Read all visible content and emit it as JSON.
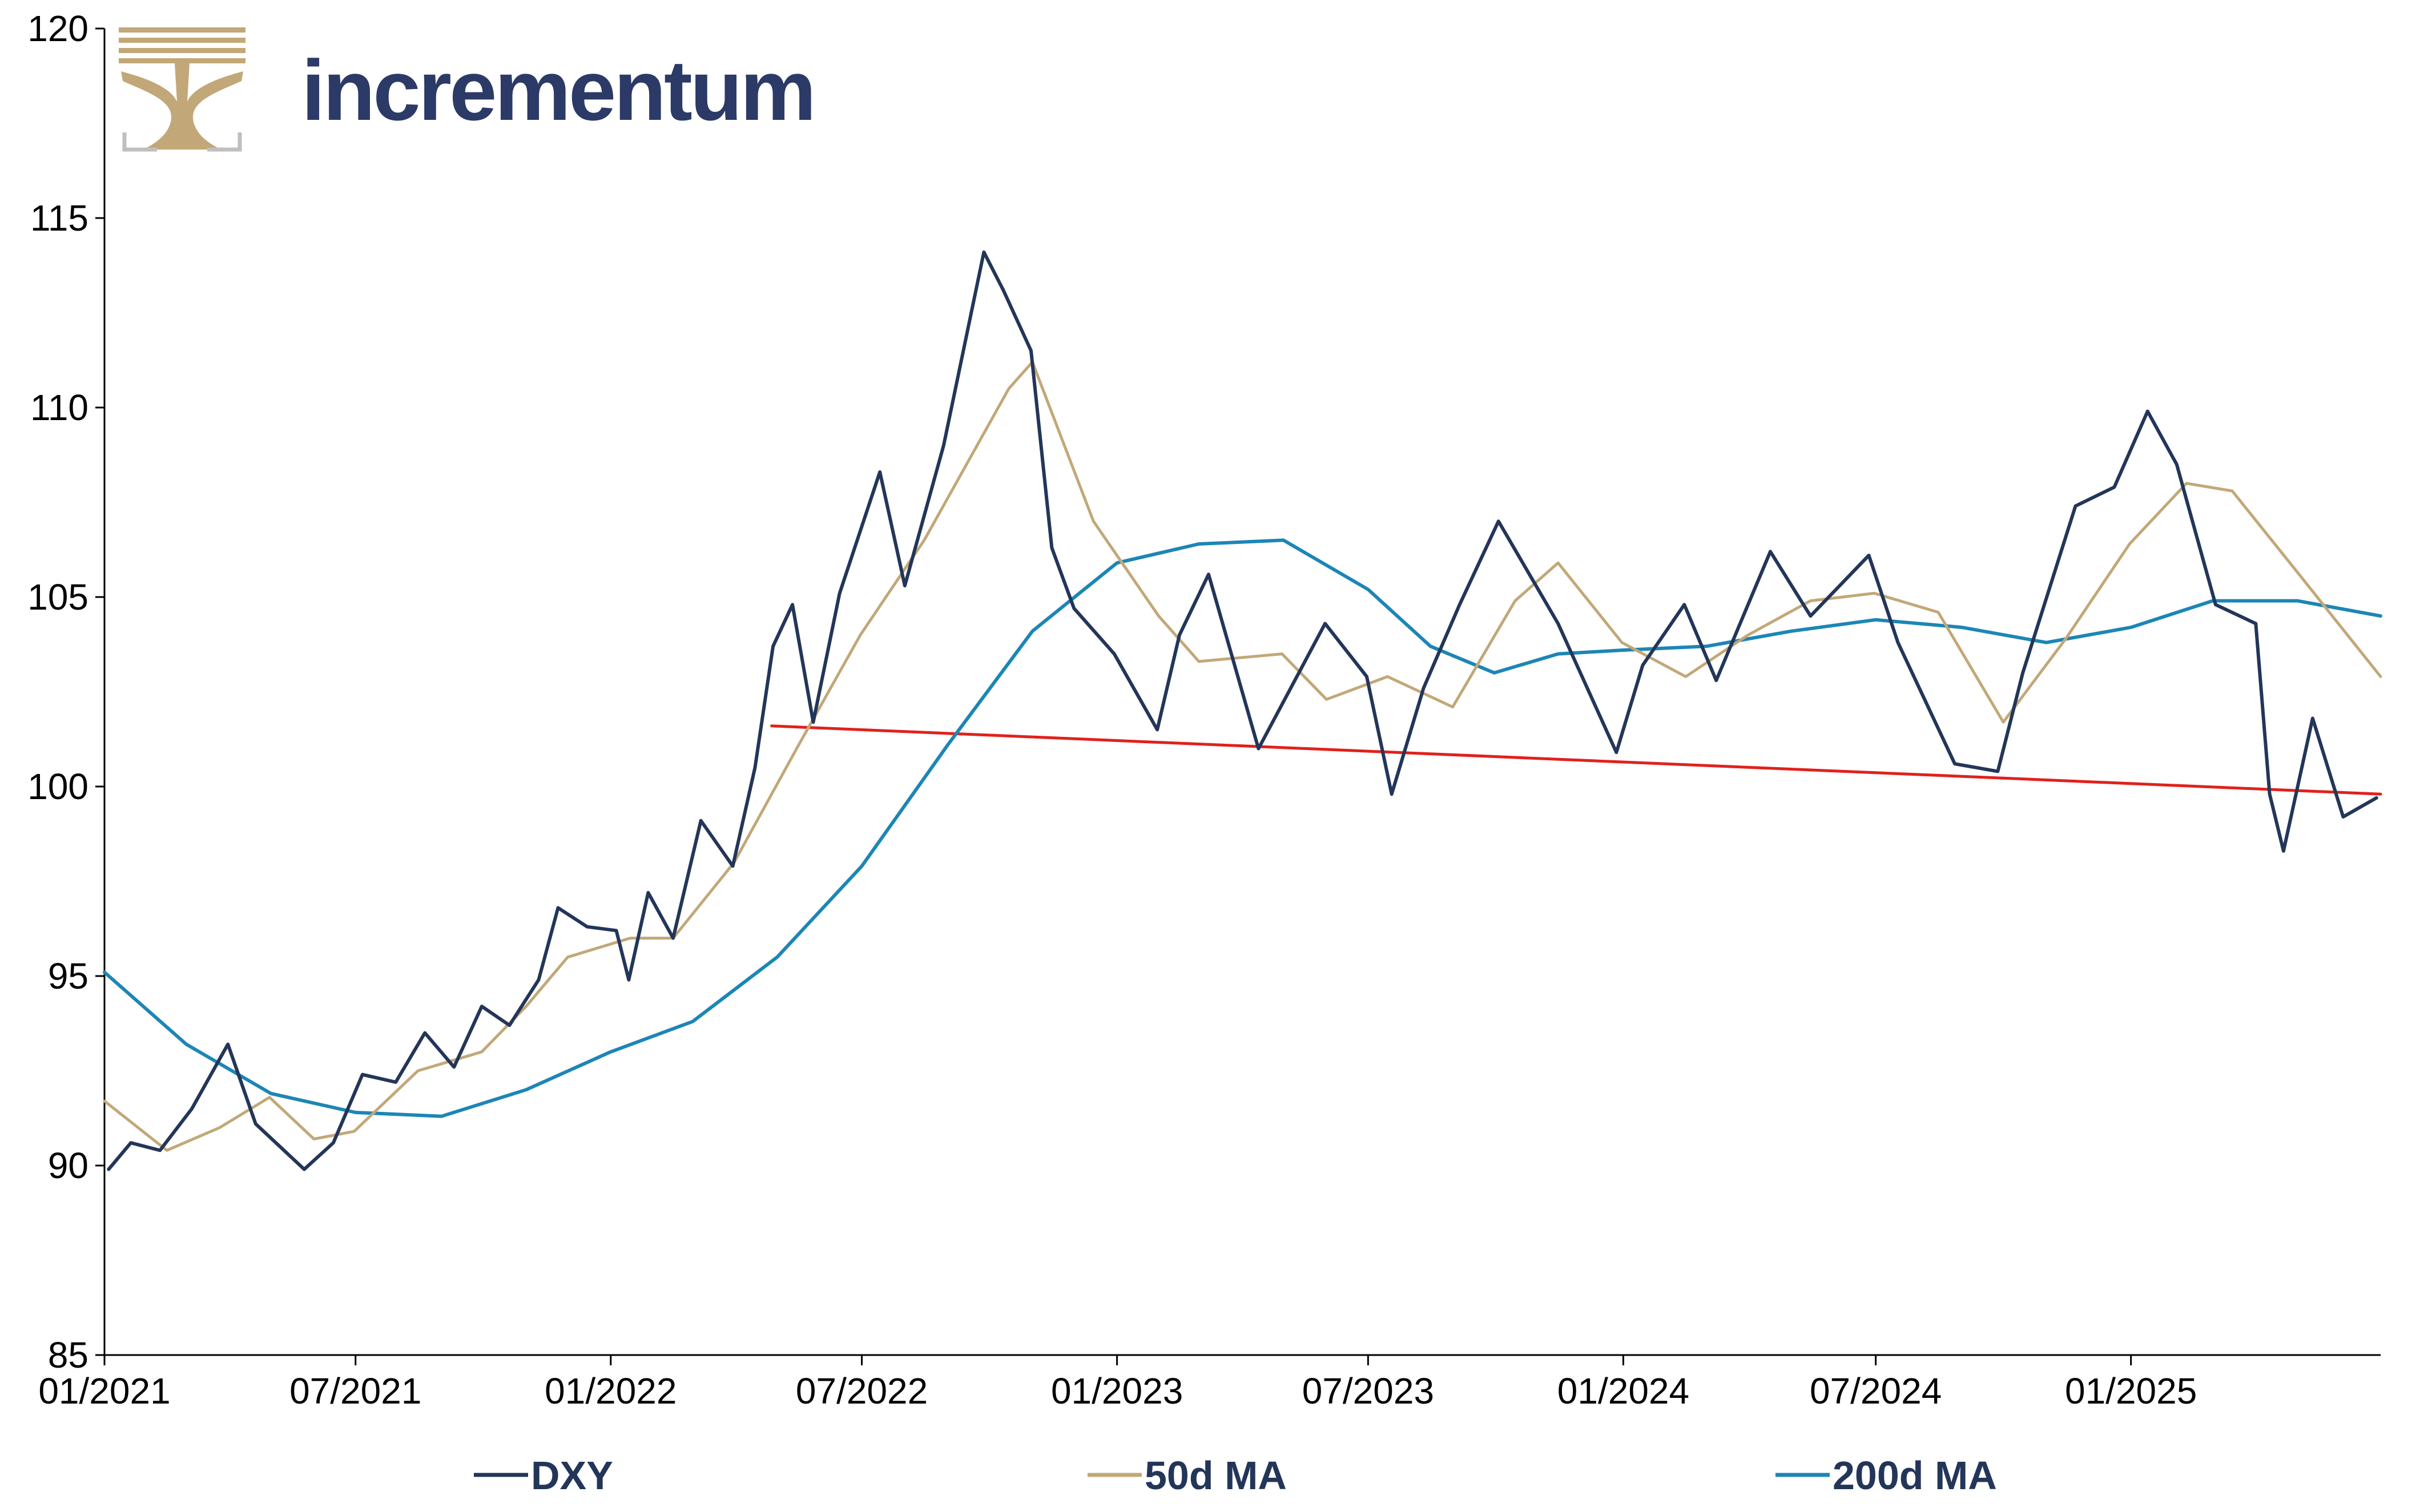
{
  "brand": {
    "name": "incrementum"
  },
  "chart_data": {
    "type": "line",
    "ylim": [
      85,
      120
    ],
    "yticks": [
      85,
      90,
      95,
      100,
      105,
      110,
      115,
      120
    ],
    "x_range": [
      "2021-01-01",
      "2025-06-30"
    ],
    "xticks": [
      {
        "date": "2021-01-01",
        "label": "01/2021"
      },
      {
        "date": "2021-07-01",
        "label": "07/2021"
      },
      {
        "date": "2022-01-01",
        "label": "01/2022"
      },
      {
        "date": "2022-07-01",
        "label": "07/2022"
      },
      {
        "date": "2023-01-01",
        "label": "01/2023"
      },
      {
        "date": "2023-07-01",
        "label": "07/2023"
      },
      {
        "date": "2024-01-01",
        "label": "01/2024"
      },
      {
        "date": "2024-07-01",
        "label": "07/2024"
      },
      {
        "date": "2025-01-01",
        "label": "01/2025"
      }
    ],
    "legend": {
      "placement": "bottom"
    },
    "grid": false,
    "series": [
      {
        "name": "DXY",
        "color": "#233659",
        "points": [
          [
            "2021-01-04",
            89.9
          ],
          [
            "2021-01-20",
            90.6
          ],
          [
            "2021-02-10",
            90.4
          ],
          [
            "2021-03-05",
            91.5
          ],
          [
            "2021-03-31",
            93.2
          ],
          [
            "2021-04-20",
            91.1
          ],
          [
            "2021-05-25",
            89.9
          ],
          [
            "2021-06-15",
            90.6
          ],
          [
            "2021-07-06",
            92.4
          ],
          [
            "2021-07-30",
            92.2
          ],
          [
            "2021-08-20",
            93.5
          ],
          [
            "2021-09-10",
            92.6
          ],
          [
            "2021-09-30",
            94.2
          ],
          [
            "2021-10-20",
            93.7
          ],
          [
            "2021-11-10",
            94.9
          ],
          [
            "2021-11-24",
            96.8
          ],
          [
            "2021-12-15",
            96.3
          ],
          [
            "2022-01-05",
            96.2
          ],
          [
            "2022-01-14",
            94.9
          ],
          [
            "2022-01-28",
            97.2
          ],
          [
            "2022-02-15",
            96.0
          ],
          [
            "2022-03-07",
            99.1
          ],
          [
            "2022-03-30",
            97.9
          ],
          [
            "2022-04-15",
            100.5
          ],
          [
            "2022-04-28",
            103.7
          ],
          [
            "2022-05-12",
            104.8
          ],
          [
            "2022-05-27",
            101.7
          ],
          [
            "2022-06-15",
            105.1
          ],
          [
            "2022-07-14",
            108.3
          ],
          [
            "2022-08-01",
            105.3
          ],
          [
            "2022-08-29",
            109.0
          ],
          [
            "2022-09-27",
            114.1
          ],
          [
            "2022-10-11",
            113.1
          ],
          [
            "2022-10-31",
            111.5
          ],
          [
            "2022-11-15",
            106.3
          ],
          [
            "2022-12-01",
            104.7
          ],
          [
            "2022-12-30",
            103.5
          ],
          [
            "2023-01-30",
            101.5
          ],
          [
            "2023-02-15",
            104.0
          ],
          [
            "2023-03-08",
            105.6
          ],
          [
            "2023-04-13",
            101.0
          ],
          [
            "2023-05-31",
            104.3
          ],
          [
            "2023-06-30",
            102.9
          ],
          [
            "2023-07-18",
            99.8
          ],
          [
            "2023-08-10",
            102.6
          ],
          [
            "2023-09-05",
            104.8
          ],
          [
            "2023-10-03",
            107.0
          ],
          [
            "2023-11-15",
            104.3
          ],
          [
            "2023-12-27",
            100.9
          ],
          [
            "2024-01-15",
            103.2
          ],
          [
            "2024-02-14",
            104.8
          ],
          [
            "2024-03-08",
            102.8
          ],
          [
            "2024-04-16",
            106.2
          ],
          [
            "2024-05-15",
            104.5
          ],
          [
            "2024-06-26",
            106.1
          ],
          [
            "2024-07-17",
            103.8
          ],
          [
            "2024-08-27",
            100.6
          ],
          [
            "2024-09-27",
            100.4
          ],
          [
            "2024-10-15",
            103.0
          ],
          [
            "2024-11-22",
            107.4
          ],
          [
            "2024-12-20",
            107.9
          ],
          [
            "2025-01-13",
            109.9
          ],
          [
            "2025-02-03",
            108.5
          ],
          [
            "2025-03-03",
            104.8
          ],
          [
            "2025-04-01",
            104.3
          ],
          [
            "2025-04-11",
            99.8
          ],
          [
            "2025-04-21",
            98.3
          ],
          [
            "2025-05-12",
            101.8
          ],
          [
            "2025-06-03",
            99.2
          ],
          [
            "2025-06-27",
            99.7
          ]
        ]
      },
      {
        "name": "50d MA",
        "color": "#c2a878",
        "points": [
          [
            "2021-01-01",
            91.7
          ],
          [
            "2021-02-15",
            90.4
          ],
          [
            "2021-03-25",
            91.0
          ],
          [
            "2021-04-30",
            91.8
          ],
          [
            "2021-06-01",
            90.7
          ],
          [
            "2021-06-30",
            90.9
          ],
          [
            "2021-08-15",
            92.5
          ],
          [
            "2021-09-30",
            93.0
          ],
          [
            "2021-11-01",
            94.2
          ],
          [
            "2021-12-01",
            95.5
          ],
          [
            "2022-01-15",
            96.0
          ],
          [
            "2022-02-15",
            96.0
          ],
          [
            "2022-03-31",
            98.0
          ],
          [
            "2022-05-15",
            101.0
          ],
          [
            "2022-06-30",
            104.0
          ],
          [
            "2022-08-15",
            106.5
          ],
          [
            "2022-10-15",
            110.5
          ],
          [
            "2022-11-01",
            111.2
          ],
          [
            "2022-12-15",
            107.0
          ],
          [
            "2023-01-31",
            104.5
          ],
          [
            "2023-03-01",
            103.3
          ],
          [
            "2023-04-30",
            103.5
          ],
          [
            "2023-06-01",
            102.3
          ],
          [
            "2023-07-15",
            102.9
          ],
          [
            "2023-08-31",
            102.1
          ],
          [
            "2023-10-15",
            104.9
          ],
          [
            "2023-11-15",
            105.9
          ],
          [
            "2023-12-31",
            103.8
          ],
          [
            "2024-02-15",
            102.9
          ],
          [
            "2024-03-31",
            104.0
          ],
          [
            "2024-05-15",
            104.9
          ],
          [
            "2024-06-30",
            105.1
          ],
          [
            "2024-08-15",
            104.6
          ],
          [
            "2024-10-01",
            101.7
          ],
          [
            "2024-11-15",
            103.9
          ],
          [
            "2024-12-31",
            106.4
          ],
          [
            "2025-02-10",
            108.0
          ],
          [
            "2025-03-15",
            107.8
          ],
          [
            "2025-04-30",
            105.7
          ],
          [
            "2025-06-30",
            102.9
          ]
        ]
      },
      {
        "name": "200d MA",
        "color": "#1c86b6",
        "points": [
          [
            "2021-01-01",
            95.1
          ],
          [
            "2021-03-01",
            93.2
          ],
          [
            "2021-05-01",
            91.9
          ],
          [
            "2021-07-01",
            91.4
          ],
          [
            "2021-09-01",
            91.3
          ],
          [
            "2021-11-01",
            92.0
          ],
          [
            "2022-01-01",
            93.0
          ],
          [
            "2022-03-01",
            93.8
          ],
          [
            "2022-05-01",
            95.5
          ],
          [
            "2022-07-01",
            97.9
          ],
          [
            "2022-09-01",
            101.1
          ],
          [
            "2022-11-01",
            104.1
          ],
          [
            "2023-01-01",
            105.9
          ],
          [
            "2023-03-01",
            106.4
          ],
          [
            "2023-05-01",
            106.5
          ],
          [
            "2023-07-01",
            105.2
          ],
          [
            "2023-08-15",
            103.7
          ],
          [
            "2023-09-30",
            103.0
          ],
          [
            "2023-11-15",
            103.5
          ],
          [
            "2024-01-01",
            103.6
          ],
          [
            "2024-03-01",
            103.7
          ],
          [
            "2024-05-01",
            104.1
          ],
          [
            "2024-07-01",
            104.4
          ],
          [
            "2024-09-01",
            104.2
          ],
          [
            "2024-11-01",
            103.8
          ],
          [
            "2025-01-01",
            104.2
          ],
          [
            "2025-03-01",
            104.9
          ],
          [
            "2025-05-01",
            104.9
          ],
          [
            "2025-06-30",
            104.5
          ]
        ]
      },
      {
        "name": "",
        "color": "#e0211c",
        "points": [
          [
            "2022-04-27",
            101.6
          ],
          [
            "2025-06-30",
            99.8
          ]
        ]
      }
    ]
  }
}
